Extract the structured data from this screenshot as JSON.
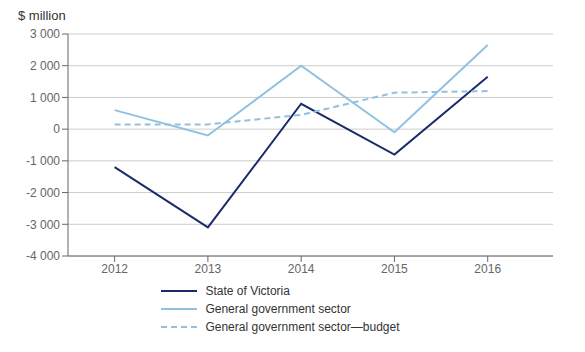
{
  "chart_data": {
    "type": "line",
    "ylabel": "$ million",
    "x": [
      2012,
      2013,
      2014,
      2015,
      2016
    ],
    "xlim": [
      2011.5,
      2016.7
    ],
    "xticks": [
      2012,
      2013,
      2014,
      2015,
      2016
    ],
    "ylim": [
      -4000,
      3000
    ],
    "yticks": [
      {
        "value": -4000,
        "label": "-4 000"
      },
      {
        "value": -3000,
        "label": "-3 000"
      },
      {
        "value": -2000,
        "label": "-2 000"
      },
      {
        "value": -1000,
        "label": "-1 000"
      },
      0,
      {
        "value": 1000,
        "label": "1 000"
      },
      {
        "value": 2000,
        "label": "2 000"
      },
      {
        "value": 3000,
        "label": "3 000"
      }
    ],
    "grid": true,
    "legend": "bottom",
    "series": [
      {
        "name": "State of Victoria",
        "color": "#1B2A6B",
        "line_style": "solid",
        "values": [
          -1200,
          -3100,
          800,
          -800,
          1650
        ]
      },
      {
        "name": "General government sector",
        "color": "#92C0E0",
        "line_style": "solid",
        "values": [
          600,
          -200,
          2000,
          -100,
          2650
        ]
      },
      {
        "name": "General government sector—budget",
        "color": "#92C0E0",
        "line_style": "dashed",
        "values": [
          150,
          150,
          450,
          1150,
          1200
        ]
      }
    ]
  }
}
